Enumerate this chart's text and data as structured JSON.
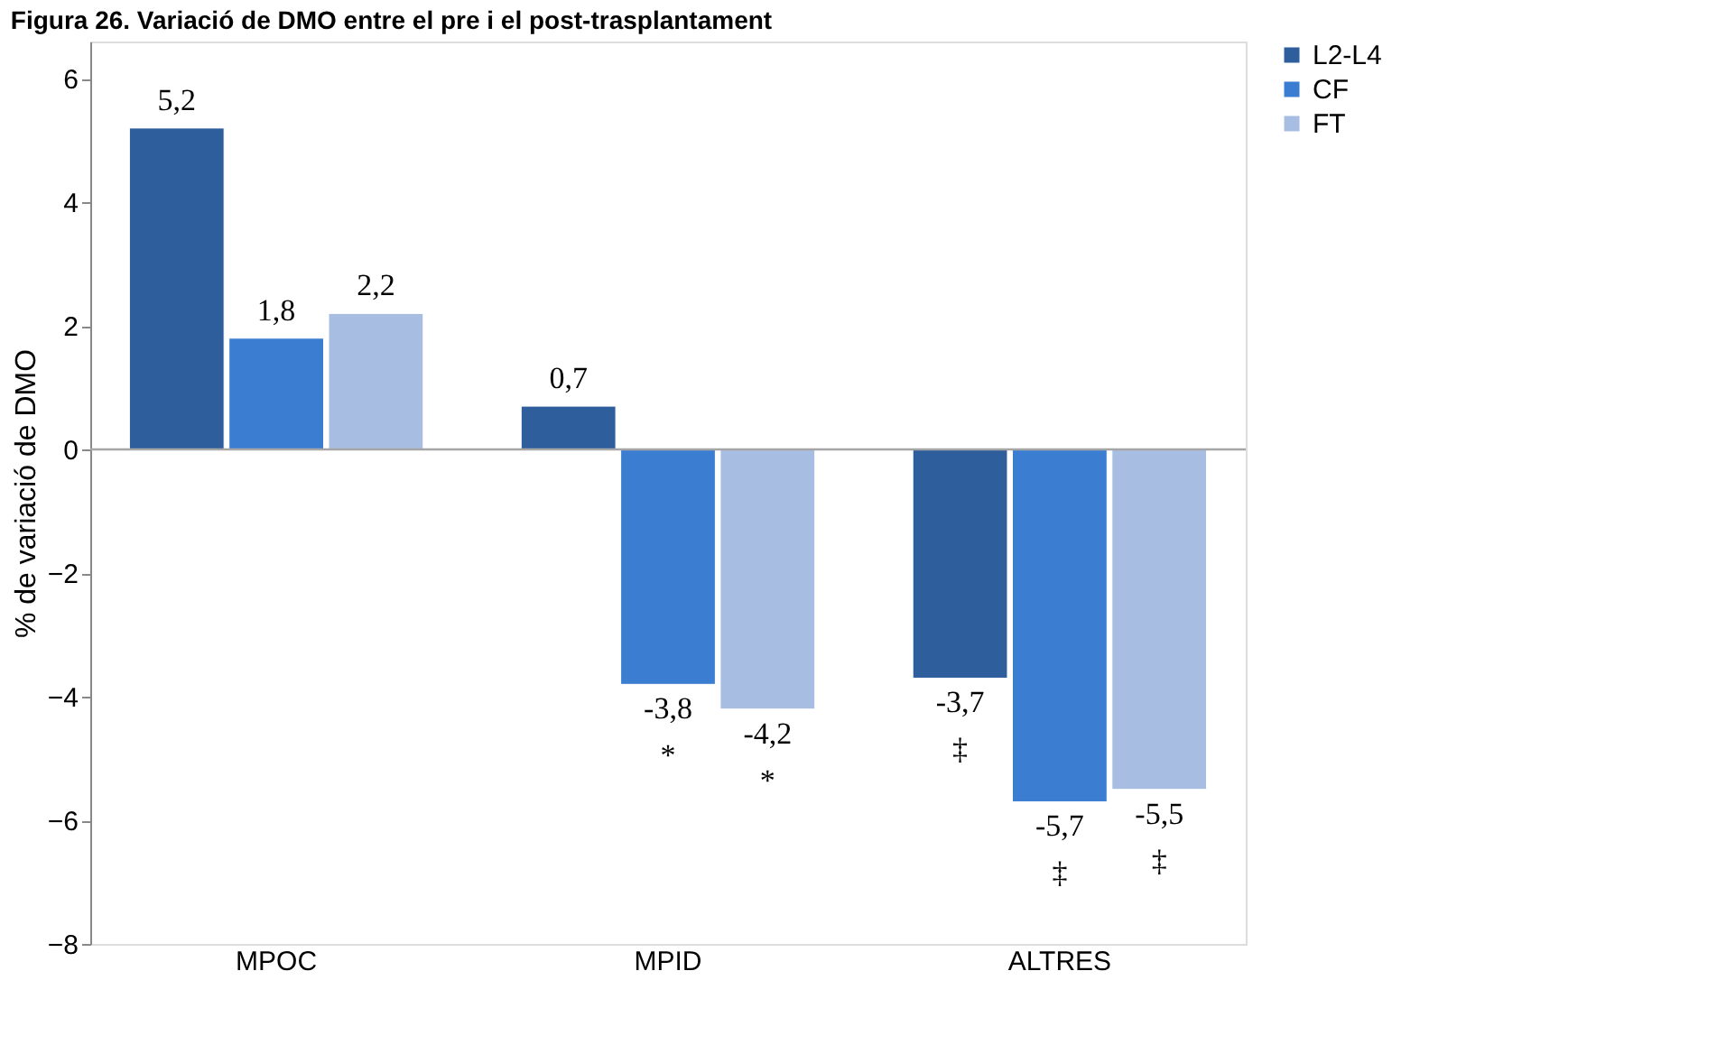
{
  "chart_data": {
    "type": "bar",
    "title": "Figura 26. Variació de DMO entre el pre i el post-trasplantament",
    "ylabel": "% de variació de DMO",
    "categories": [
      "MPOC",
      "MPID",
      "ALTRES"
    ],
    "series": [
      {
        "name": "L2-L4",
        "color": "#2e5e9c",
        "values": [
          5.2,
          0.7,
          -3.7
        ],
        "value_labels": [
          "5,2",
          "0,7",
          "-3,7\n‡"
        ]
      },
      {
        "name": "CF",
        "color": "#3b7dd0",
        "values": [
          1.8,
          -3.8,
          -5.7
        ],
        "value_labels": [
          "1,8",
          "-3,8\n*",
          "-5,7\n‡"
        ]
      },
      {
        "name": "FT",
        "color": "#a8bde2",
        "values": [
          2.2,
          -4.2,
          -5.5
        ],
        "value_labels": [
          "2,2",
          "-4,2\n*",
          "-5,5\n‡"
        ]
      }
    ],
    "ylim": [
      -8,
      6.6
    ],
    "yticks": [
      -8,
      -6,
      -4,
      -2,
      0,
      2,
      4,
      6
    ],
    "grid": false,
    "legend": "right",
    "ref_lines": [
      {
        "axis": "y",
        "value": 0,
        "color": "#a6a6a6"
      }
    ]
  }
}
